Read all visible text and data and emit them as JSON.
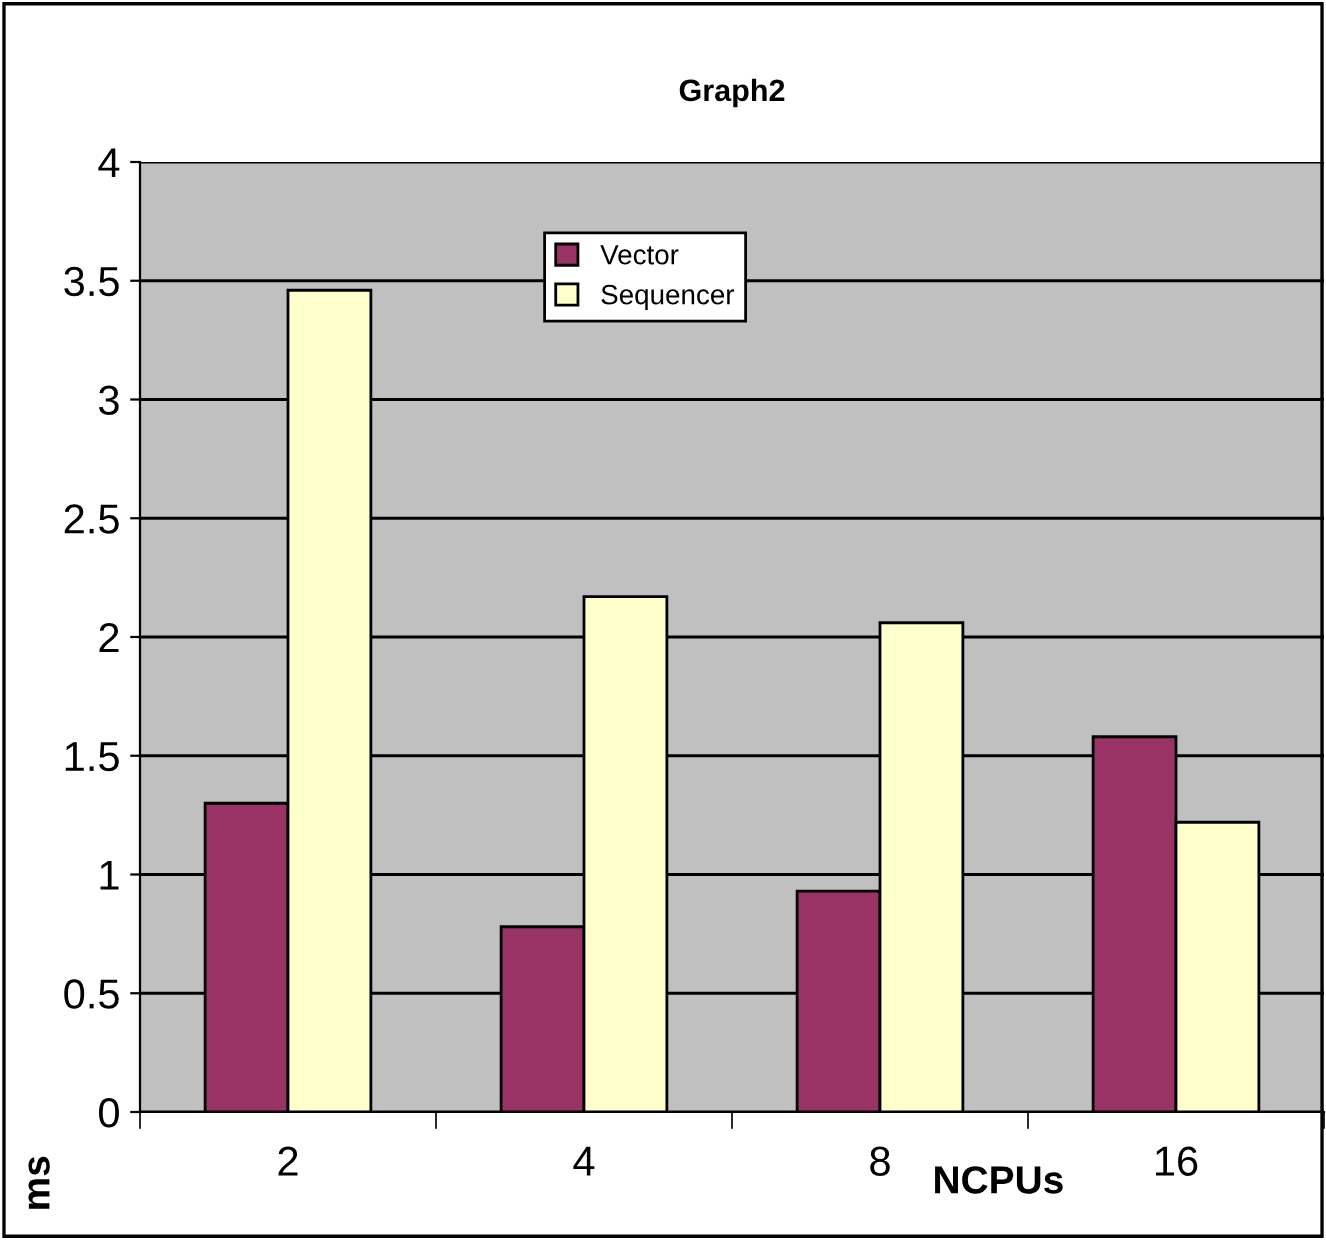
{
  "chart_data": {
    "type": "bar",
    "title": "Graph2",
    "xlabel": "NCPUs",
    "ylabel": "ms",
    "categories": [
      "2",
      "4",
      "8",
      "16"
    ],
    "series": [
      {
        "name": "Vector",
        "color": "#993366",
        "values": [
          1.3,
          0.78,
          0.93,
          1.58
        ]
      },
      {
        "name": "Sequencer",
        "color": "#ffffcc",
        "values": [
          3.46,
          2.17,
          2.06,
          1.22
        ]
      }
    ],
    "ylim": [
      0,
      4
    ],
    "yticks": [
      0,
      0.5,
      1,
      1.5,
      2,
      2.5,
      3,
      3.5,
      4
    ],
    "grid": "y",
    "legend": "top"
  }
}
